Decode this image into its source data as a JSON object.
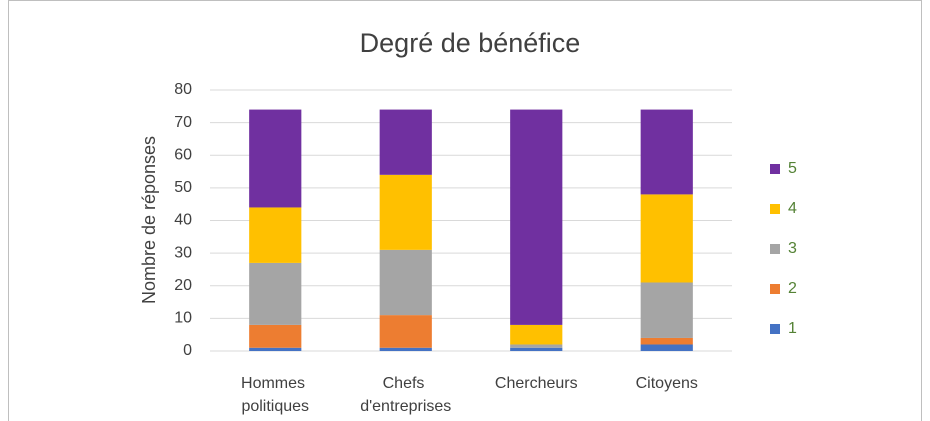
{
  "chart_data": {
    "type": "stacked_bar",
    "title": "Degré de bénéfice",
    "y_label": "Nombre de réponses",
    "categories": [
      "Hommes politiques",
      "Chefs d'entreprises",
      "Chercheurs",
      "Citoyens"
    ],
    "series": [
      {
        "name": "1",
        "color": "#4472c4",
        "values": [
          1,
          1,
          1,
          2
        ]
      },
      {
        "name": "2",
        "color": "#ed7d31",
        "values": [
          7,
          10,
          0,
          2
        ]
      },
      {
        "name": "3",
        "color": "#a5a5a5",
        "values": [
          19,
          20,
          1,
          17
        ]
      },
      {
        "name": "4",
        "color": "#ffc000",
        "values": [
          17,
          23,
          6,
          27
        ]
      },
      {
        "name": "5",
        "color": "#7030a0",
        "values": [
          30,
          20,
          66,
          26
        ]
      }
    ],
    "ylim": [
      0,
      80
    ],
    "yticks": [
      0,
      10,
      20,
      30,
      40,
      50,
      60,
      70,
      80
    ],
    "grid": true,
    "legend": "right"
  }
}
